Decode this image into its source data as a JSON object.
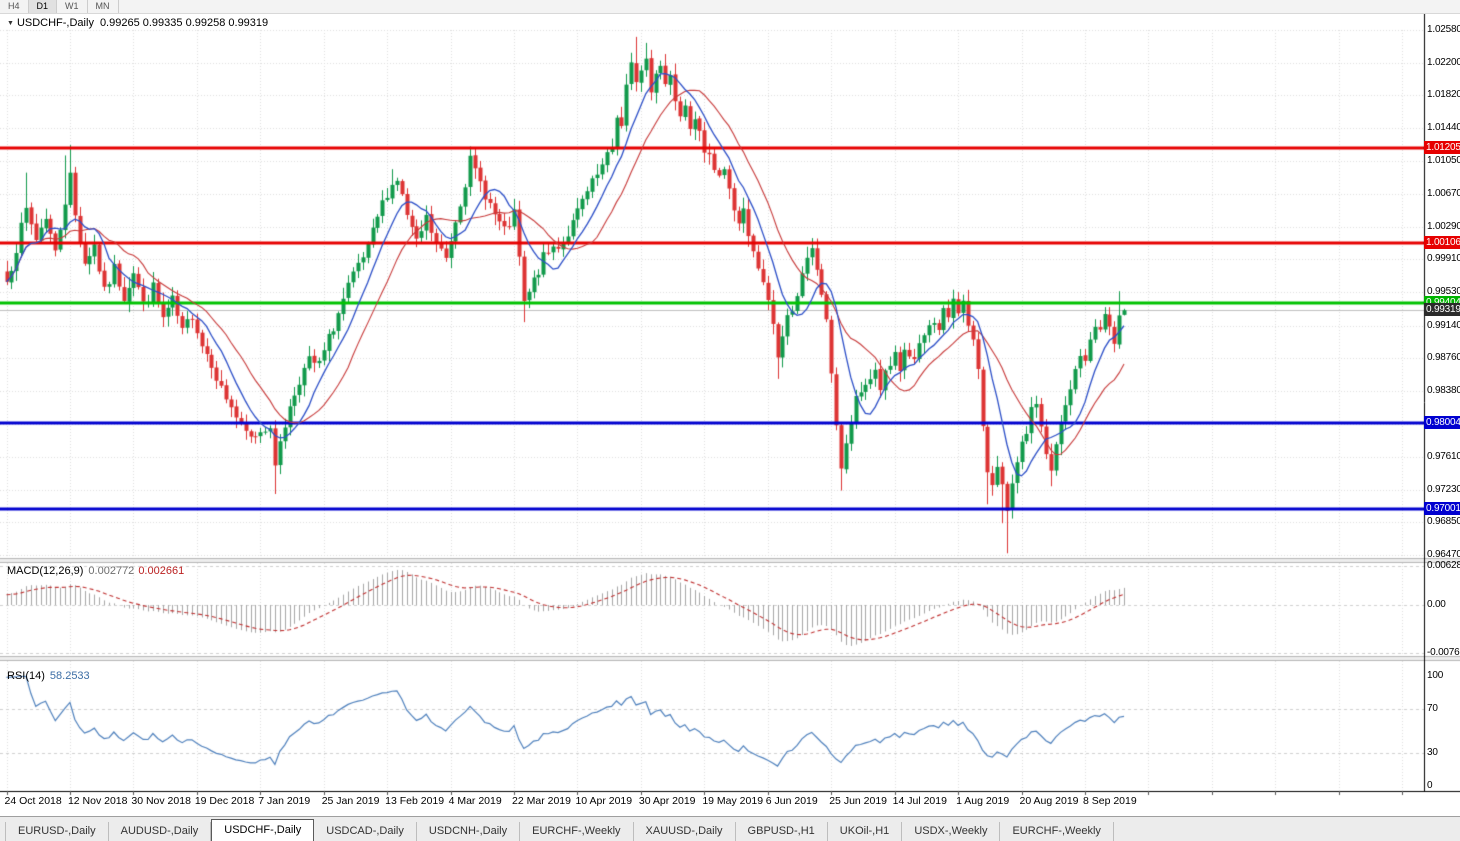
{
  "toolbar": {
    "timeframes": [
      {
        "label": "H4",
        "active": false
      },
      {
        "label": "D1",
        "active": true
      },
      {
        "label": "W1",
        "active": false
      },
      {
        "label": "MN",
        "active": false
      }
    ]
  },
  "chart": {
    "title": "USDCHF-,Daily",
    "open": "0.99265",
    "high": "0.99335",
    "low": "0.99258",
    "close": "0.99319",
    "ohlc_text": "0.99265 0.99335 0.99258 0.99319"
  },
  "indicators": {
    "macd": {
      "label": "MACD(12,26,9)",
      "value1": "0.002772",
      "value2": "0.002661",
      "axis": [
        "0.006286",
        "0.00",
        "-0.00762"
      ]
    },
    "rsi": {
      "label": "RSI(14)",
      "value": "58.2533",
      "axis": [
        "100",
        "70",
        "30",
        "0"
      ]
    }
  },
  "tabs": [
    {
      "label": "EURUSD-,Daily",
      "active": false
    },
    {
      "label": "AUDUSD-,Daily",
      "active": false
    },
    {
      "label": "USDCHF-,Daily",
      "active": true
    },
    {
      "label": "USDCAD-,Daily",
      "active": false
    },
    {
      "label": "USDCNH-,Daily",
      "active": false
    },
    {
      "label": "EURCHF-,Weekly",
      "active": false
    },
    {
      "label": "XAUUSD-,Daily",
      "active": false
    },
    {
      "label": "GBPUSD-,H1",
      "active": false
    },
    {
      "label": "UKOil-,H1",
      "active": false
    },
    {
      "label": "USDX-,Weekly",
      "active": false
    },
    {
      "label": "EURCHF-,Weekly",
      "active": false
    }
  ],
  "colors": {
    "bull": "#119a4b",
    "bear": "#dd3434",
    "ma_fast": "#2c4fc8",
    "ma_slow": "#c83a3a",
    "macd_hist": "#a6a6a6",
    "macd_signal": "#c03030",
    "rsi": "#4f81bd",
    "grid": "#dedede"
  },
  "chart_data": {
    "type": "candlestick",
    "symbol": "USDCHF-",
    "period": "Daily",
    "x_axis": {
      "labels": [
        "24 Oct 2018",
        "12 Nov 2018",
        "30 Nov 2018",
        "19 Dec 2018",
        "7 Jan 2019",
        "25 Jan 2019",
        "13 Feb 2019",
        "4 Mar 2019",
        "22 Mar 2019",
        "10 Apr 2019",
        "30 Apr 2019",
        "19 May 2019",
        "6 Jun 2019",
        "25 Jun 2019",
        "14 Jul 2019",
        "1 Aug 2019",
        "20 Aug 2019",
        "8 Sep 2019"
      ],
      "bars_per_label": 13
    },
    "y_axis": {
      "min": 0.9647,
      "max": 1.0258,
      "ticks": [
        "1.02580",
        "1.02200",
        "1.01820",
        "1.01440",
        "1.01050",
        "1.00670",
        "1.00290",
        "0.99910",
        "0.99530",
        "0.99140",
        "0.98760",
        "0.98380",
        "0.98000",
        "0.97610",
        "0.97230",
        "0.96850",
        "0.96470"
      ]
    },
    "levels": [
      {
        "label": "1.01205",
        "value": 1.01205,
        "color": "#e60000",
        "badge": "#e60000",
        "line": 3
      },
      {
        "label": "1.00106",
        "value": 1.00106,
        "color": "#e60000",
        "badge": "#e60000",
        "line": 3
      },
      {
        "label": "0.99404",
        "value": 0.99404,
        "color": "#00c300",
        "badge": "#00b400",
        "line": 3
      },
      {
        "label": "0.99319",
        "value": 0.99319,
        "color": "#c0c0c0",
        "badge": "#2b2b2b",
        "line": 1,
        "current": true
      },
      {
        "label": "0.98004",
        "value": 0.98004,
        "color": "#0000d0",
        "badge": "#0000d0",
        "line": 3
      },
      {
        "label": "0.97001",
        "value": 0.97001,
        "color": "#0000d0",
        "badge": "#0000d0",
        "line": 3
      }
    ],
    "close_anchors": [
      [
        0,
        0.9965
      ],
      [
        2,
        1.0005
      ],
      [
        4,
        1.0048
      ],
      [
        6,
        1.0015
      ],
      [
        8,
        1.0042
      ],
      [
        10,
        0.9998
      ],
      [
        12,
        1.006
      ],
      [
        13,
        1.0088
      ],
      [
        14,
        1.0042
      ],
      [
        16,
        0.9988
      ],
      [
        18,
        1.0008
      ],
      [
        20,
        0.9952
      ],
      [
        22,
        0.998
      ],
      [
        24,
        0.9948
      ],
      [
        26,
        0.9978
      ],
      [
        28,
        0.9938
      ],
      [
        30,
        0.9958
      ],
      [
        32,
        0.9922
      ],
      [
        34,
        0.9942
      ],
      [
        36,
        0.9905
      ],
      [
        38,
        0.9928
      ],
      [
        40,
        0.9892
      ],
      [
        42,
        0.9872
      ],
      [
        44,
        0.984
      ],
      [
        46,
        0.982
      ],
      [
        48,
        0.9795
      ],
      [
        50,
        0.9782
      ],
      [
        52,
        0.9792
      ],
      [
        54,
        0.98
      ],
      [
        55,
        0.9745
      ],
      [
        56,
        0.9782
      ],
      [
        58,
        0.9818
      ],
      [
        60,
        0.9852
      ],
      [
        62,
        0.9872
      ],
      [
        64,
        0.9868
      ],
      [
        66,
        0.9898
      ],
      [
        68,
        0.9928
      ],
      [
        70,
        0.9958
      ],
      [
        72,
        0.9982
      ],
      [
        74,
        1.0002
      ],
      [
        76,
        1.004
      ],
      [
        78,
        1.007
      ],
      [
        80,
        1.0085
      ],
      [
        82,
        1.0042
      ],
      [
        84,
        1.0008
      ],
      [
        86,
        1.0038
      ],
      [
        88,
        1.0008
      ],
      [
        90,
        0.9992
      ],
      [
        92,
        1.0038
      ],
      [
        94,
        1.0082
      ],
      [
        95,
        1.0105
      ],
      [
        96,
        1.0092
      ],
      [
        98,
        1.0068
      ],
      [
        100,
        1.0042
      ],
      [
        102,
        1.0022
      ],
      [
        104,
        1.0042
      ],
      [
        105,
        0.9992
      ],
      [
        106,
        0.9938
      ],
      [
        108,
        0.9965
      ],
      [
        110,
        0.9992
      ],
      [
        112,
        1.0005
      ],
      [
        114,
        1.0012
      ],
      [
        116,
        1.0032
      ],
      [
        118,
        1.0058
      ],
      [
        120,
        1.0078
      ],
      [
        122,
        1.0098
      ],
      [
        124,
        1.012
      ],
      [
        125,
        1.016
      ],
      [
        126,
        1.0145
      ],
      [
        127,
        1.019
      ],
      [
        128,
        1.0215
      ],
      [
        129,
        1.0202
      ],
      [
        130,
        1.021
      ],
      [
        131,
        1.0225
      ],
      [
        132,
        1.0185
      ],
      [
        133,
        1.0212
      ],
      [
        134,
        1.022
      ],
      [
        135,
        1.0196
      ],
      [
        136,
        1.0206
      ],
      [
        137,
        1.018
      ],
      [
        138,
        1.0165
      ],
      [
        139,
        1.0175
      ],
      [
        140,
        1.015
      ],
      [
        141,
        1.016
      ],
      [
        142,
        1.0135
      ],
      [
        143,
        1.0108
      ],
      [
        144,
        1.012
      ],
      [
        145,
        1.01
      ],
      [
        146,
        1.009
      ],
      [
        147,
        1.0096
      ],
      [
        148,
        1.007
      ],
      [
        149,
        1.005
      ],
      [
        150,
        1.0035
      ],
      [
        151,
        1.0046
      ],
      [
        152,
        1.0015
      ],
      [
        153,
        0.9996
      ],
      [
        154,
        0.998
      ],
      [
        155,
        0.996
      ],
      [
        156,
        0.9945
      ],
      [
        157,
        0.9915
      ],
      [
        158,
        0.988
      ],
      [
        160,
        0.9922
      ],
      [
        162,
        0.9952
      ],
      [
        164,
        0.9988
      ],
      [
        165,
        1.0
      ],
      [
        166,
        0.998
      ],
      [
        167,
        0.9952
      ],
      [
        168,
        0.9915
      ],
      [
        169,
        0.9862
      ],
      [
        170,
        0.98
      ],
      [
        171,
        0.9748
      ],
      [
        172,
        0.9772
      ],
      [
        173,
        0.9802
      ],
      [
        174,
        0.9825
      ],
      [
        176,
        0.9846
      ],
      [
        178,
        0.9862
      ],
      [
        179,
        0.9842
      ],
      [
        180,
        0.9856
      ],
      [
        182,
        0.9876
      ],
      [
        183,
        0.9856
      ],
      [
        184,
        0.9886
      ],
      [
        186,
        0.9872
      ],
      [
        188,
        0.9902
      ],
      [
        190,
        0.9922
      ],
      [
        191,
        0.9906
      ],
      [
        192,
        0.9936
      ],
      [
        193,
        0.9922
      ],
      [
        194,
        0.994
      ],
      [
        195,
        0.993
      ],
      [
        196,
        0.9946
      ],
      [
        197,
        0.992
      ],
      [
        198,
        0.9895
      ],
      [
        199,
        0.986
      ],
      [
        200,
        0.979
      ],
      [
        201,
        0.9746
      ],
      [
        202,
        0.9732
      ],
      [
        203,
        0.9756
      ],
      [
        204,
        0.9726
      ],
      [
        205,
        0.9692
      ],
      [
        206,
        0.9726
      ],
      [
        207,
        0.975
      ],
      [
        208,
        0.9772
      ],
      [
        209,
        0.9792
      ],
      [
        210,
        0.9812
      ],
      [
        211,
        0.9826
      ],
      [
        212,
        0.9796
      ],
      [
        213,
        0.9766
      ],
      [
        214,
        0.9742
      ],
      [
        215,
        0.9772
      ],
      [
        216,
        0.98
      ],
      [
        217,
        0.9818
      ],
      [
        218,
        0.9838
      ],
      [
        219,
        0.9862
      ],
      [
        220,
        0.9882
      ],
      [
        221,
        0.9868
      ],
      [
        222,
        0.9898
      ],
      [
        223,
        0.9918
      ],
      [
        224,
        0.9906
      ],
      [
        225,
        0.9928
      ],
      [
        226,
        0.9912
      ],
      [
        227,
        0.9892
      ],
      [
        228,
        0.992
      ],
      [
        229,
        0.9932
      ]
    ],
    "wick_spikes": [
      {
        "i": 4,
        "high": 1.0092
      },
      {
        "i": 12,
        "high": 1.0112
      },
      {
        "i": 13,
        "high": 1.0124
      },
      {
        "i": 55,
        "low": 0.9718
      },
      {
        "i": 79,
        "high": 1.0096
      },
      {
        "i": 95,
        "high": 1.0122
      },
      {
        "i": 106,
        "low": 0.9918
      },
      {
        "i": 129,
        "high": 1.025
      },
      {
        "i": 131,
        "high": 1.0243
      },
      {
        "i": 135,
        "high": 1.023
      },
      {
        "i": 158,
        "low": 0.9852
      },
      {
        "i": 165,
        "high": 1.0008
      },
      {
        "i": 171,
        "low": 0.9722
      },
      {
        "i": 196,
        "high": 0.995
      },
      {
        "i": 201,
        "low": 0.9706
      },
      {
        "i": 204,
        "low": 0.9684
      },
      {
        "i": 205,
        "low": 0.9649
      },
      {
        "i": 214,
        "low": 0.9727
      },
      {
        "i": 228,
        "high": 0.9954
      }
    ],
    "last_bar": {
      "open": 0.99265,
      "high": 0.99335,
      "low": 0.99258,
      "close": 0.99319
    },
    "indicator_params": {
      "macd": [
        12,
        26,
        9
      ],
      "rsi": 14,
      "ma_fast": 8,
      "ma_slow": 16
    }
  }
}
